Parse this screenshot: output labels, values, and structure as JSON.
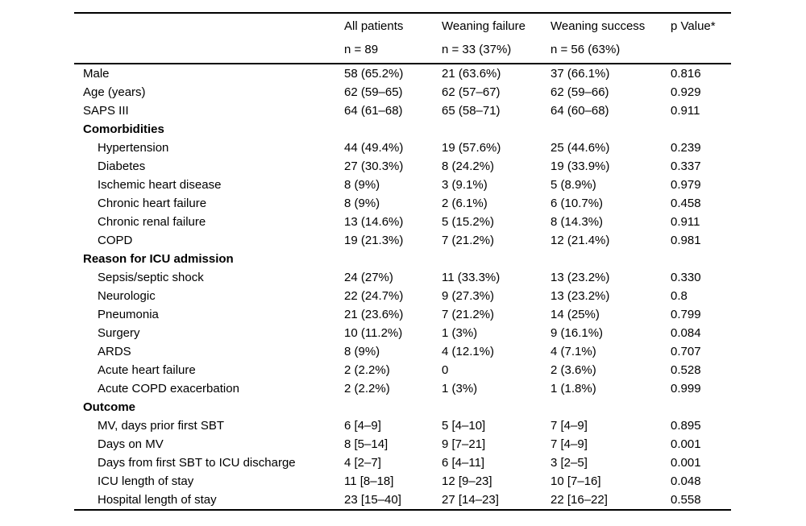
{
  "page": {
    "background_color": "#ffffff",
    "text_color": "#000000"
  },
  "chart_data": {
    "type": "table",
    "header": {
      "columns": [
        {
          "line1": "",
          "line2": ""
        },
        {
          "line1": "All patients",
          "line2": "n = 89"
        },
        {
          "line1": "Weaning failure",
          "line2": "n = 33 (37%)"
        },
        {
          "line1": "Weaning success",
          "line2": "n = 56 (63%)"
        },
        {
          "line1": "p Value*",
          "line2": ""
        }
      ]
    },
    "rows": [
      {
        "label": "Male",
        "indent": false,
        "bold": false,
        "values": [
          "58 (65.2%)",
          "21 (63.6%)",
          "37 (66.1%)",
          "0.816"
        ]
      },
      {
        "label": "Age (years)",
        "indent": false,
        "bold": false,
        "values": [
          "62 (59–65)",
          "62 (57–67)",
          "62 (59–66)",
          "0.929"
        ]
      },
      {
        "label": "SAPS III",
        "indent": false,
        "bold": false,
        "values": [
          "64 (61–68)",
          "65 (58–71)",
          "64 (60–68)",
          "0.911"
        ]
      },
      {
        "label": "Comorbidities",
        "indent": false,
        "bold": true,
        "values": [
          "",
          "",
          "",
          ""
        ]
      },
      {
        "label": "Hypertension",
        "indent": true,
        "bold": false,
        "values": [
          "44 (49.4%)",
          "19 (57.6%)",
          "25 (44.6%)",
          "0.239"
        ]
      },
      {
        "label": "Diabetes",
        "indent": true,
        "bold": false,
        "values": [
          "27 (30.3%)",
          "8 (24.2%)",
          "19 (33.9%)",
          "0.337"
        ]
      },
      {
        "label": "Ischemic heart disease",
        "indent": true,
        "bold": false,
        "values": [
          "8 (9%)",
          "3 (9.1%)",
          "5 (8.9%)",
          "0.979"
        ]
      },
      {
        "label": "Chronic heart failure",
        "indent": true,
        "bold": false,
        "values": [
          "8 (9%)",
          "2 (6.1%)",
          "6 (10.7%)",
          "0.458"
        ]
      },
      {
        "label": "Chronic renal failure",
        "indent": true,
        "bold": false,
        "values": [
          "13 (14.6%)",
          "5 (15.2%)",
          "8 (14.3%)",
          "0.911"
        ]
      },
      {
        "label": "COPD",
        "indent": true,
        "bold": false,
        "values": [
          "19 (21.3%)",
          "7 (21.2%)",
          "12 (21.4%)",
          "0.981"
        ]
      },
      {
        "label": "Reason for ICU admission",
        "indent": false,
        "bold": true,
        "values": [
          "",
          "",
          "",
          ""
        ]
      },
      {
        "label": "Sepsis/septic shock",
        "indent": true,
        "bold": false,
        "values": [
          "24 (27%)",
          "11 (33.3%)",
          "13 (23.2%)",
          "0.330"
        ]
      },
      {
        "label": "Neurologic",
        "indent": true,
        "bold": false,
        "values": [
          "22 (24.7%)",
          "9 (27.3%)",
          "13 (23.2%)",
          "0.8"
        ]
      },
      {
        "label": "Pneumonia",
        "indent": true,
        "bold": false,
        "values": [
          "21 (23.6%)",
          "7 (21.2%)",
          "14 (25%)",
          "0.799"
        ]
      },
      {
        "label": "Surgery",
        "indent": true,
        "bold": false,
        "values": [
          "10 (11.2%)",
          "1 (3%)",
          "9 (16.1%)",
          "0.084"
        ]
      },
      {
        "label": "ARDS",
        "indent": true,
        "bold": false,
        "values": [
          "8 (9%)",
          "4 (12.1%)",
          "4 (7.1%)",
          "0.707"
        ]
      },
      {
        "label": "Acute heart failure",
        "indent": true,
        "bold": false,
        "values": [
          "2 (2.2%)",
          "0",
          "2 (3.6%)",
          "0.528"
        ]
      },
      {
        "label": "Acute COPD exacerbation",
        "indent": true,
        "bold": false,
        "values": [
          "2 (2.2%)",
          "1 (3%)",
          "1 (1.8%)",
          "0.999"
        ]
      },
      {
        "label": "Outcome",
        "indent": false,
        "bold": true,
        "values": [
          "",
          "",
          "",
          ""
        ]
      },
      {
        "label": "MV, days prior first SBT",
        "indent": true,
        "bold": false,
        "values": [
          "6 [4–9]",
          "5 [4–10]",
          "7 [4–9]",
          "0.895"
        ]
      },
      {
        "label": "Days on MV",
        "indent": true,
        "bold": false,
        "values": [
          "8 [5–14]",
          "9 [7–21]",
          "7 [4–9]",
          "0.001"
        ]
      },
      {
        "label": "Days from first SBT to ICU discharge",
        "indent": true,
        "bold": false,
        "values": [
          "4 [2–7]",
          "6 [4–11]",
          "3 [2–5]",
          "0.001"
        ]
      },
      {
        "label": "ICU length of stay",
        "indent": true,
        "bold": false,
        "values": [
          "11 [8–18]",
          "12 [9–23]",
          "10 [7–16]",
          "0.048"
        ]
      },
      {
        "label": "Hospital length of stay",
        "indent": true,
        "bold": false,
        "values": [
          "23 [15–40]",
          "27 [14–23]",
          "22 [16–22]",
          "0.558"
        ]
      }
    ]
  }
}
